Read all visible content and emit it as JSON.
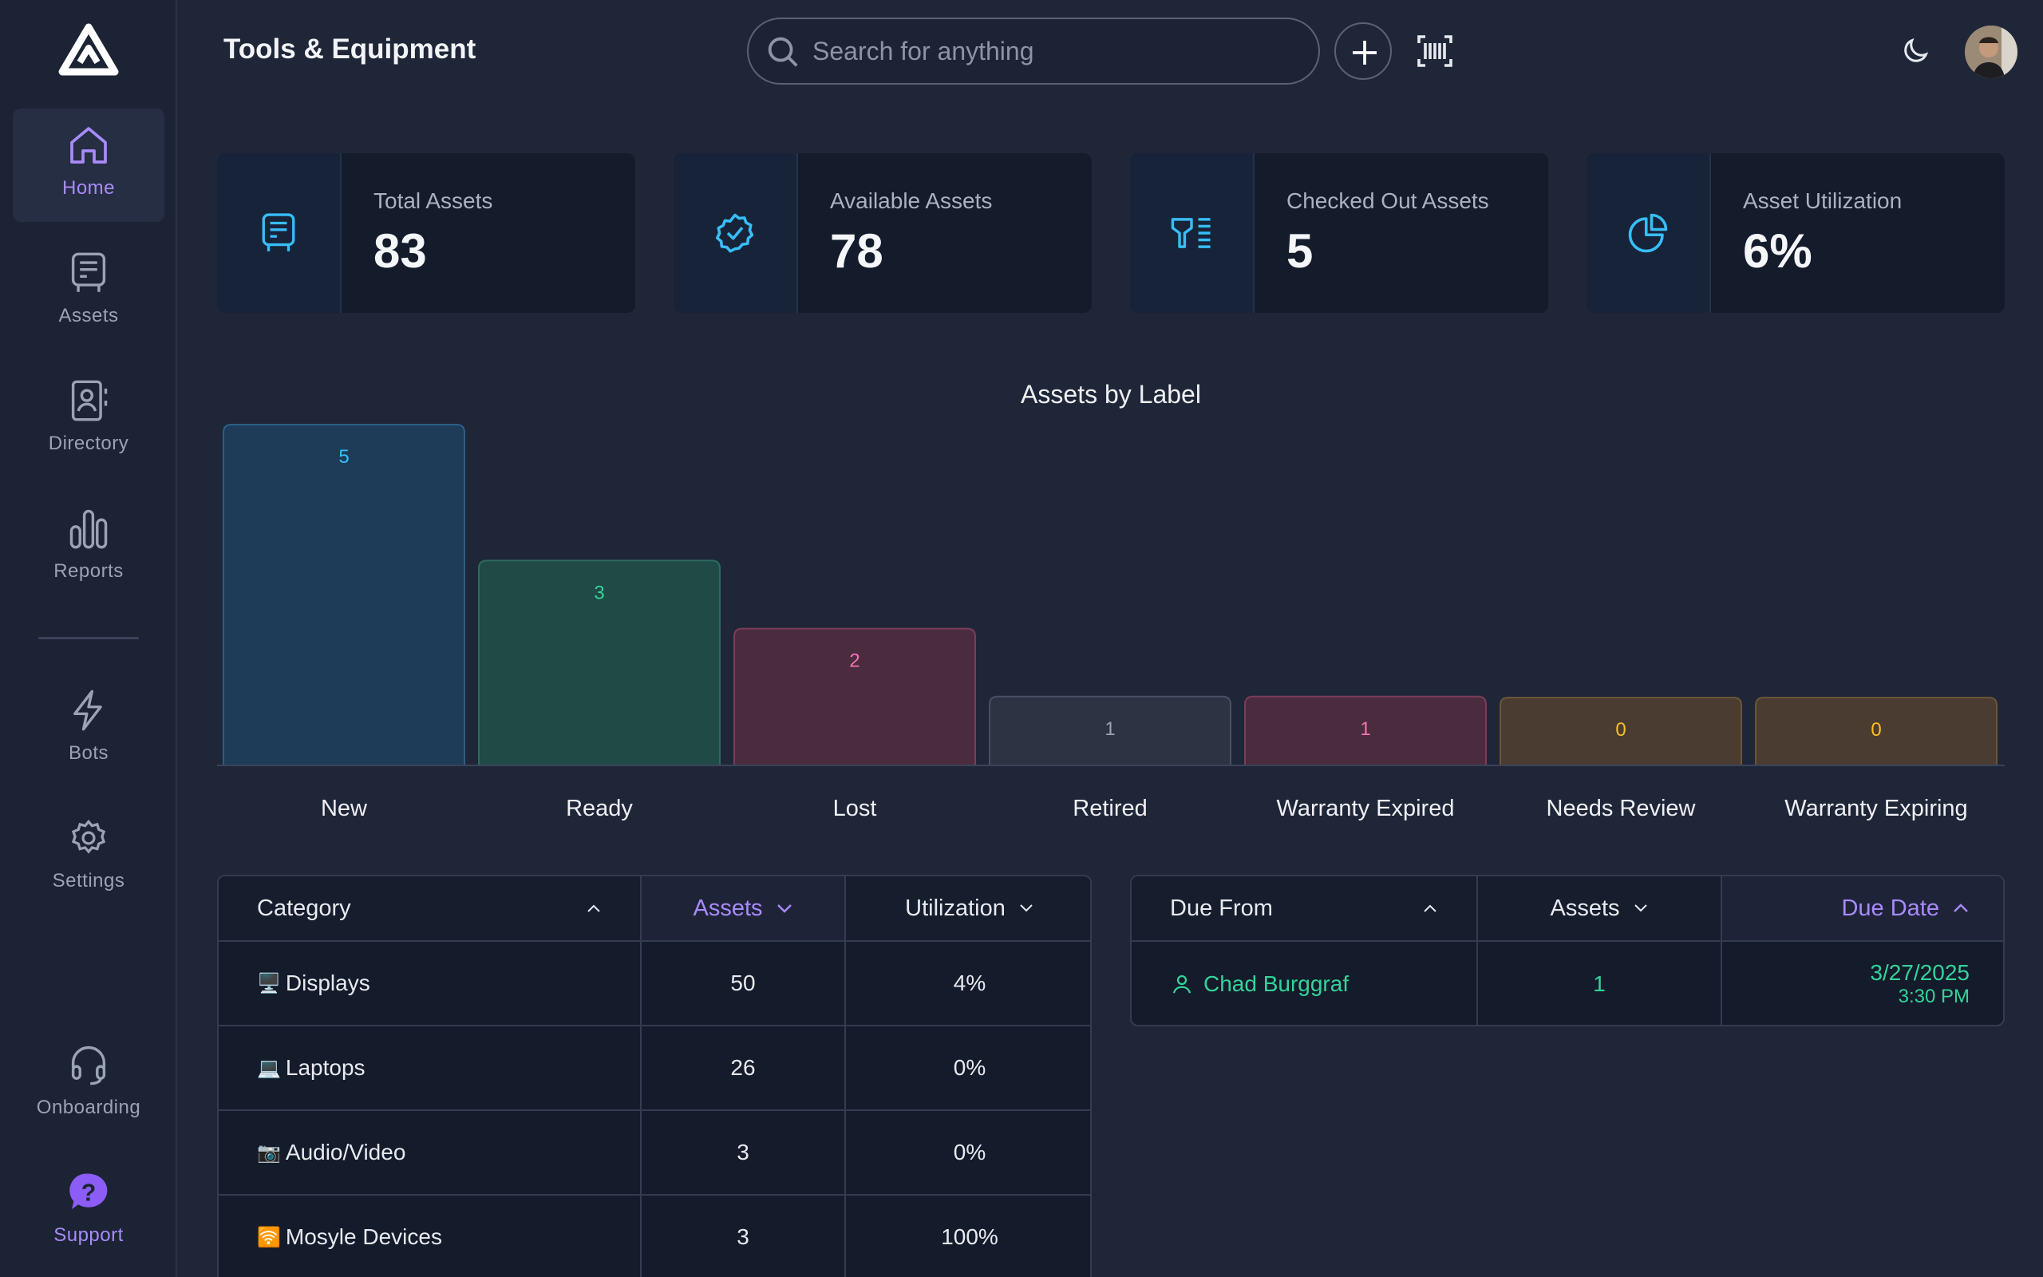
{
  "app": {
    "page_title": "Tools & Equipment"
  },
  "search": {
    "placeholder": "Search for anything"
  },
  "sidebar": {
    "items": [
      {
        "label": "Home",
        "icon": "home-icon",
        "active": true
      },
      {
        "label": "Assets",
        "icon": "assets-icon"
      },
      {
        "label": "Directory",
        "icon": "directory-icon"
      },
      {
        "label": "Reports",
        "icon": "reports-icon"
      },
      {
        "label": "Bots",
        "icon": "bolt-icon"
      },
      {
        "label": "Settings",
        "icon": "gear-icon"
      },
      {
        "label": "Onboarding",
        "icon": "headset-icon"
      },
      {
        "label": "Support",
        "icon": "question-icon"
      }
    ]
  },
  "stats": [
    {
      "label": "Total Assets",
      "value": "83",
      "icon": "asset-box-icon"
    },
    {
      "label": "Available Assets",
      "value": "78",
      "icon": "check-badge-icon"
    },
    {
      "label": "Checked Out Assets",
      "value": "5",
      "icon": "checkout-list-icon"
    },
    {
      "label": "Asset Utilization",
      "value": "6%",
      "icon": "pie-icon"
    }
  ],
  "chart_data": {
    "type": "bar",
    "title": "Assets by Label",
    "categories": [
      "New",
      "Ready",
      "Lost",
      "Retired",
      "Warranty Expired",
      "Needs Review",
      "Warranty Expiring"
    ],
    "values": [
      5,
      3,
      2,
      1,
      1,
      0,
      0
    ],
    "ylim": [
      0,
      5
    ],
    "colors": [
      "#38bdf8",
      "#34d399",
      "#f472b6",
      "#9ca3af",
      "#f472b6",
      "#fbbf24",
      "#fbbf24"
    ]
  },
  "category_table": {
    "headers": {
      "category": "Category",
      "assets": "Assets",
      "utilization": "Utilization"
    },
    "rows": [
      {
        "emoji": "🖥️",
        "name": "Displays",
        "assets": "50",
        "utilization": "4%"
      },
      {
        "emoji": "💻",
        "name": "Laptops",
        "assets": "26",
        "utilization": "0%"
      },
      {
        "emoji": "📷",
        "name": "Audio/Video",
        "assets": "3",
        "utilization": "0%"
      },
      {
        "emoji": "🛜",
        "name": "Mosyle Devices",
        "assets": "3",
        "utilization": "100%"
      }
    ]
  },
  "due_table": {
    "headers": {
      "from": "Due From",
      "assets": "Assets",
      "date": "Due Date"
    },
    "rows": [
      {
        "from": "Chad Burggraf",
        "assets": "1",
        "date": "3/27/2025",
        "time": "3:30 PM"
      }
    ]
  }
}
